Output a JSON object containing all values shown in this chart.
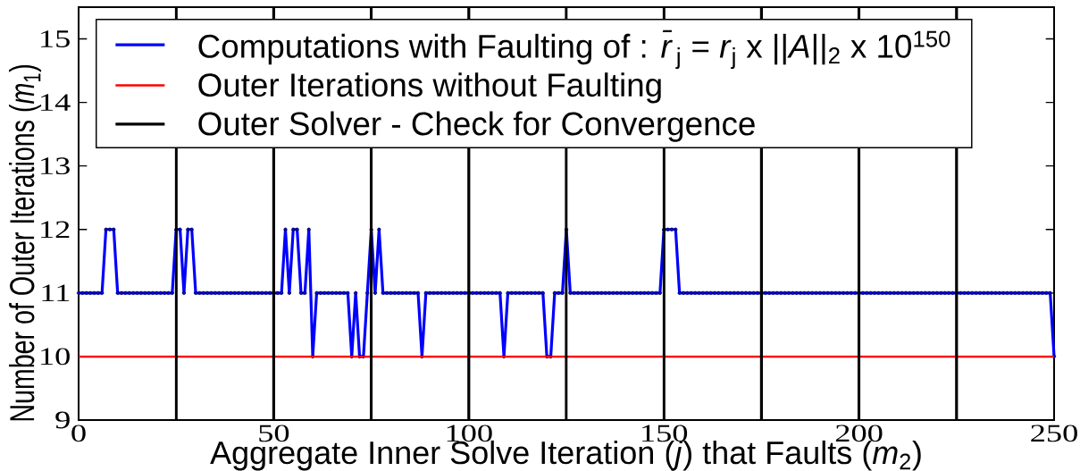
{
  "chart_data": {
    "type": "line",
    "xlabel": "Aggregate Inner Solve Iteration (*j*) that Faults (*m*$_{2}$)",
    "ylabel": "Number of Outer Iterations (*m*$_{1}$)",
    "xlim": [
      0,
      250
    ],
    "ylim": [
      9,
      15.5
    ],
    "xticks": [
      0,
      50,
      100,
      150,
      200,
      250
    ],
    "yticks": [
      9,
      10,
      11,
      12,
      13,
      14,
      15
    ],
    "legend": "top left",
    "marker": "circle",
    "series": [
      {
        "name": "Computations with Faulting of : *r̄*$_{j}$ = *r*$_{j}$ x ||*A*||$_{2}$ x 10$^{150}$",
        "color": "#0000ff",
        "x": [
          0,
          1,
          2,
          3,
          4,
          5,
          6,
          7,
          8,
          9,
          10,
          11,
          12,
          13,
          14,
          15,
          16,
          17,
          18,
          19,
          20,
          21,
          22,
          23,
          24,
          25,
          26,
          27,
          28,
          29,
          30,
          31,
          32,
          33,
          34,
          35,
          36,
          37,
          38,
          39,
          40,
          41,
          42,
          43,
          44,
          45,
          46,
          47,
          48,
          49,
          50,
          51,
          52,
          53,
          54,
          55,
          56,
          57,
          58,
          59,
          60,
          61,
          62,
          63,
          64,
          65,
          66,
          67,
          68,
          69,
          70,
          71,
          72,
          73,
          74,
          75,
          76,
          77,
          78,
          79,
          80,
          81,
          82,
          83,
          84,
          85,
          86,
          87,
          88,
          89,
          90,
          91,
          92,
          93,
          94,
          95,
          96,
          97,
          98,
          99,
          100,
          101,
          102,
          103,
          104,
          105,
          106,
          107,
          108,
          109,
          110,
          111,
          112,
          113,
          114,
          115,
          116,
          117,
          118,
          119,
          120,
          121,
          122,
          123,
          124,
          125,
          126,
          127,
          128,
          129,
          130,
          131,
          132,
          133,
          134,
          135,
          136,
          137,
          138,
          139,
          140,
          141,
          142,
          143,
          144,
          145,
          146,
          147,
          148,
          149,
          150,
          151,
          152,
          153,
          154,
          155,
          156,
          157,
          158,
          159,
          160,
          161,
          162,
          163,
          164,
          165,
          166,
          167,
          168,
          169,
          170,
          171,
          172,
          173,
          174,
          175,
          176,
          177,
          178,
          179,
          180,
          181,
          182,
          183,
          184,
          185,
          186,
          187,
          188,
          189,
          190,
          191,
          192,
          193,
          194,
          195,
          196,
          197,
          198,
          199,
          200,
          201,
          202,
          203,
          204,
          205,
          206,
          207,
          208,
          209,
          210,
          211,
          212,
          213,
          214,
          215,
          216,
          217,
          218,
          219,
          220,
          221,
          222,
          223,
          224,
          225,
          226,
          227,
          228,
          229,
          230,
          231,
          232,
          233,
          234,
          235,
          236,
          237,
          238,
          239,
          240,
          241,
          242,
          243,
          244,
          245,
          246,
          247,
          248,
          249,
          250
        ],
        "values": [
          11,
          11,
          11,
          11,
          11,
          11,
          11,
          12,
          12,
          12,
          11,
          11,
          11,
          11,
          11,
          11,
          11,
          11,
          11,
          11,
          11,
          11,
          11,
          11,
          11,
          12,
          12,
          11,
          12,
          12,
          11,
          11,
          11,
          11,
          11,
          11,
          11,
          11,
          11,
          11,
          11,
          11,
          11,
          11,
          11,
          11,
          11,
          11,
          11,
          11,
          11,
          11,
          11,
          12,
          11,
          12,
          12,
          11,
          11,
          12,
          10,
          11,
          11,
          11,
          11,
          11,
          11,
          11,
          11,
          11,
          10,
          11,
          10,
          10,
          11,
          12,
          11,
          12,
          11,
          11,
          11,
          11,
          11,
          11,
          11,
          11,
          11,
          11,
          10,
          11,
          11,
          11,
          11,
          11,
          11,
          11,
          11,
          11,
          11,
          11,
          11,
          11,
          11,
          11,
          11,
          11,
          11,
          11,
          11,
          10,
          11,
          11,
          11,
          11,
          11,
          11,
          11,
          11,
          11,
          11,
          10,
          10,
          11,
          11,
          11,
          12,
          11,
          11,
          11,
          11,
          11,
          11,
          11,
          11,
          11,
          11,
          11,
          11,
          11,
          11,
          11,
          11,
          11,
          11,
          11,
          11,
          11,
          11,
          11,
          11,
          12,
          12,
          12,
          12,
          11,
          11,
          11,
          11,
          11,
          11,
          11,
          11,
          11,
          11,
          11,
          11,
          11,
          11,
          11,
          11,
          11,
          11,
          11,
          11,
          11,
          11,
          11,
          11,
          11,
          11,
          11,
          11,
          11,
          11,
          11,
          11,
          11,
          11,
          11,
          11,
          11,
          11,
          11,
          11,
          11,
          11,
          11,
          11,
          11,
          11,
          11,
          11,
          11,
          11,
          11,
          11,
          11,
          11,
          11,
          11,
          11,
          11,
          11,
          11,
          11,
          11,
          11,
          11,
          11,
          11,
          11,
          11,
          11,
          11,
          11,
          11,
          11,
          11,
          11,
          11,
          11,
          11,
          11,
          11,
          11,
          11,
          11,
          11,
          11,
          11,
          11,
          11,
          11,
          11,
          11,
          11,
          11,
          11,
          11,
          11,
          10
        ]
      }
    ],
    "ref_lines": [
      {
        "axis": "y",
        "value": 10,
        "label": "Outer Iterations without Faulting",
        "color": "#ff0000"
      },
      {
        "axis": "x",
        "value": 25,
        "label": "Outer Solver - Check for Convergence",
        "color": "#000000"
      },
      {
        "axis": "x",
        "value": 50,
        "color": "#000000"
      },
      {
        "axis": "x",
        "value": 75,
        "color": "#000000"
      },
      {
        "axis": "x",
        "value": 100,
        "color": "#000000"
      },
      {
        "axis": "x",
        "value": 125,
        "color": "#000000"
      },
      {
        "axis": "x",
        "value": 150,
        "color": "#000000"
      },
      {
        "axis": "x",
        "value": 175,
        "color": "#000000"
      },
      {
        "axis": "x",
        "value": 200,
        "color": "#000000"
      },
      {
        "axis": "x",
        "value": 225,
        "color": "#000000"
      }
    ]
  }
}
